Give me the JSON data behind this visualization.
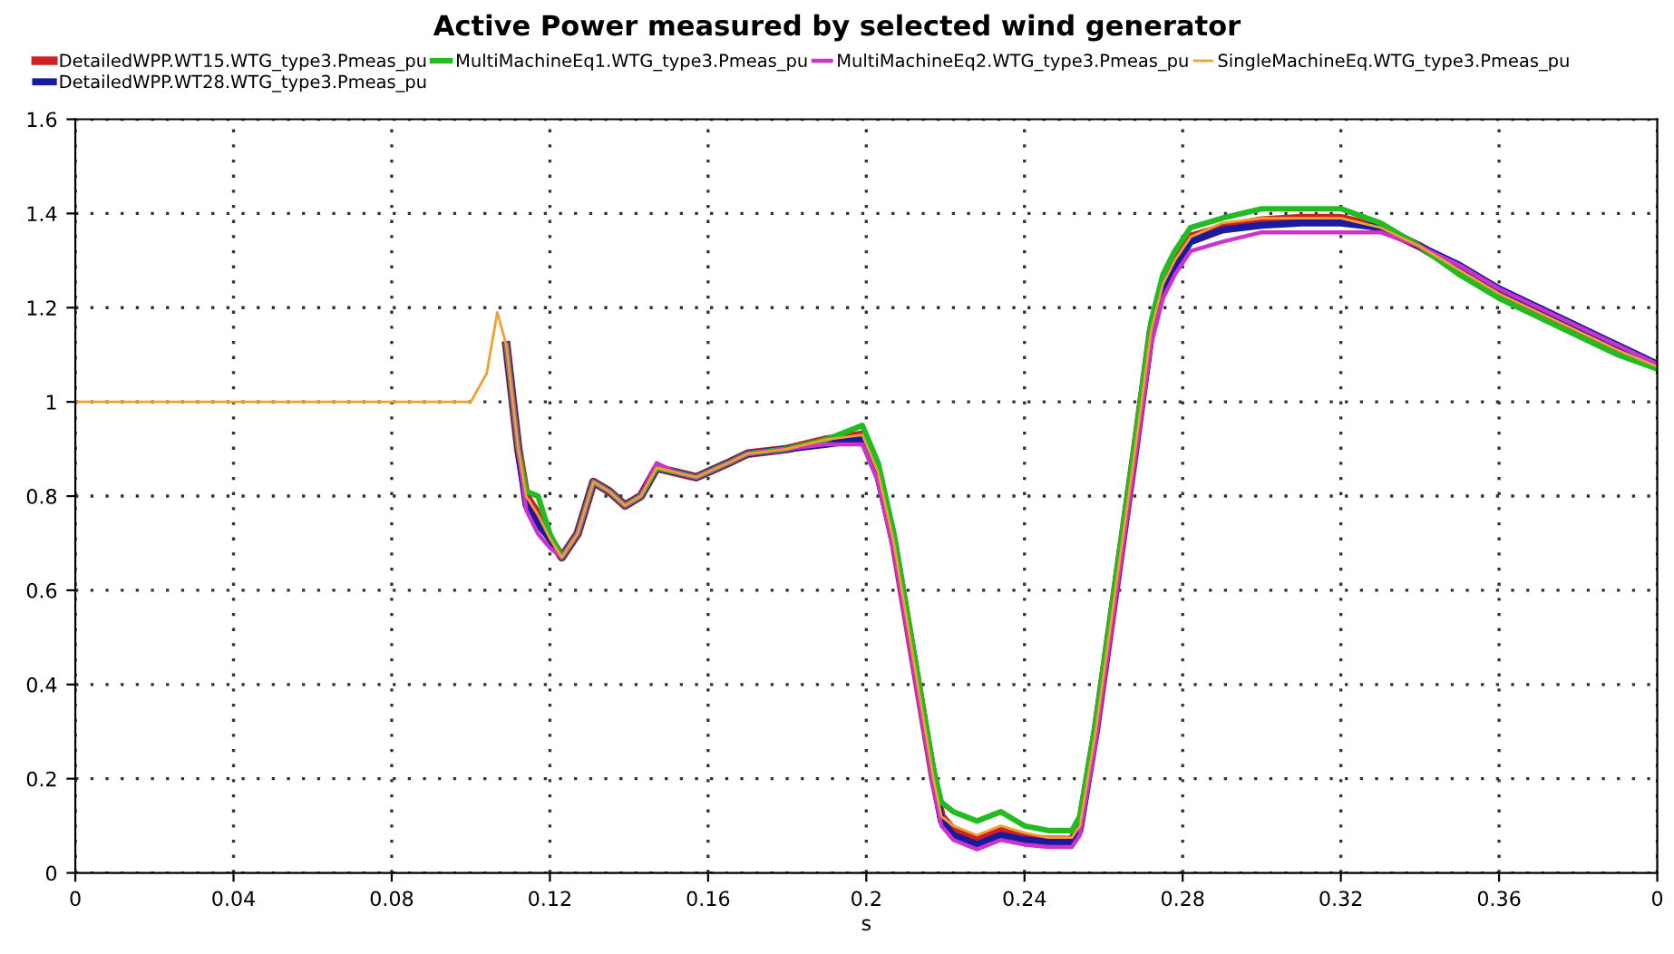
{
  "chart_data": {
    "type": "line",
    "title": "Active Power measured by selected wind generator",
    "xlabel": "s",
    "x": [
      0,
      0.1,
      0.104,
      0.1067,
      0.109,
      0.112,
      0.114,
      0.117,
      0.12,
      0.123,
      0.127,
      0.131,
      0.135,
      0.139,
      0.143,
      0.147,
      0.152,
      0.157,
      0.165,
      0.17,
      0.18,
      0.19,
      0.199,
      0.203,
      0.207,
      0.212,
      0.217,
      0.219,
      0.222,
      0.228,
      0.234,
      0.24,
      0.246,
      0.252,
      0.254,
      0.258,
      0.263,
      0.268,
      0.272,
      0.275,
      0.278,
      0.282,
      0.29,
      0.3,
      0.31,
      0.32,
      0.33,
      0.34,
      0.35,
      0.36,
      0.37,
      0.38,
      0.39,
      0.4
    ],
    "series": [
      {
        "name": "DetailedWPP.WT15.WTG_type3.Pmeas_pu",
        "color": "#cc2222",
        "values": [
          null,
          null,
          null,
          null,
          1.12,
          0.9,
          0.8,
          0.76,
          0.71,
          0.67,
          0.72,
          0.83,
          0.81,
          0.78,
          0.8,
          0.86,
          0.85,
          0.84,
          0.87,
          0.89,
          0.9,
          0.92,
          0.93,
          0.85,
          0.7,
          0.45,
          0.2,
          0.12,
          0.09,
          0.07,
          0.09,
          0.075,
          0.07,
          0.07,
          0.1,
          0.3,
          0.6,
          0.9,
          1.15,
          1.25,
          1.3,
          1.35,
          1.37,
          1.385,
          1.39,
          1.39,
          1.37,
          1.33,
          1.28,
          1.23,
          1.19,
          1.15,
          1.11,
          1.075
        ]
      },
      {
        "name": "DetailedWPP.WT28.WTG_type3.Pmeas_pu",
        "color": "#1a1aa0",
        "values": [
          null,
          null,
          null,
          null,
          1.12,
          0.9,
          0.78,
          0.74,
          0.71,
          0.67,
          0.72,
          0.83,
          0.81,
          0.78,
          0.8,
          0.86,
          0.85,
          0.84,
          0.87,
          0.89,
          0.9,
          0.91,
          0.92,
          0.84,
          0.7,
          0.45,
          0.2,
          0.11,
          0.08,
          0.06,
          0.08,
          0.07,
          0.065,
          0.065,
          0.09,
          0.3,
          0.6,
          0.9,
          1.14,
          1.24,
          1.29,
          1.34,
          1.365,
          1.375,
          1.38,
          1.38,
          1.37,
          1.33,
          1.29,
          1.24,
          1.2,
          1.16,
          1.12,
          1.08
        ]
      },
      {
        "name": "MultiMachineEq1.WTG_type3.Pmeas_pu",
        "color": "#22bb22",
        "values": [
          null,
          null,
          null,
          null,
          1.12,
          0.9,
          0.81,
          0.8,
          0.72,
          0.67,
          0.72,
          0.83,
          0.81,
          0.78,
          0.8,
          0.86,
          0.85,
          0.84,
          0.87,
          0.89,
          0.9,
          0.92,
          0.95,
          0.87,
          0.72,
          0.47,
          0.22,
          0.15,
          0.13,
          0.11,
          0.13,
          0.1,
          0.09,
          0.09,
          0.12,
          0.32,
          0.62,
          0.92,
          1.17,
          1.27,
          1.32,
          1.37,
          1.39,
          1.41,
          1.41,
          1.41,
          1.38,
          1.33,
          1.27,
          1.22,
          1.18,
          1.14,
          1.1,
          1.07
        ]
      },
      {
        "name": "MultiMachineEq2.WTG_type3.Pmeas_pu",
        "color": "#cc33cc",
        "values": [
          null,
          null,
          null,
          null,
          1.12,
          0.9,
          0.77,
          0.72,
          0.69,
          0.67,
          0.72,
          0.83,
          0.81,
          0.78,
          0.8,
          0.87,
          0.85,
          0.84,
          0.87,
          0.89,
          0.9,
          0.91,
          0.91,
          0.83,
          0.68,
          0.43,
          0.18,
          0.1,
          0.07,
          0.05,
          0.07,
          0.06,
          0.055,
          0.055,
          0.08,
          0.28,
          0.58,
          0.88,
          1.12,
          1.22,
          1.27,
          1.32,
          1.34,
          1.36,
          1.36,
          1.36,
          1.36,
          1.33,
          1.29,
          1.24,
          1.2,
          1.16,
          1.12,
          1.08
        ]
      },
      {
        "name": "SingleMachineEq.WTG_type3.Pmeas_pu",
        "color": "#f0a030",
        "values": [
          1,
          1,
          1.06,
          1.19,
          1.12,
          0.9,
          0.8,
          0.76,
          0.71,
          0.67,
          0.72,
          0.83,
          0.81,
          0.78,
          0.8,
          0.86,
          0.85,
          0.84,
          0.87,
          0.89,
          0.9,
          0.92,
          0.93,
          0.85,
          0.7,
          0.45,
          0.2,
          0.12,
          0.1,
          0.08,
          0.1,
          0.085,
          0.075,
          0.075,
          0.1,
          0.3,
          0.6,
          0.9,
          1.15,
          1.25,
          1.3,
          1.35,
          1.38,
          1.39,
          1.39,
          1.39,
          1.37,
          1.33,
          1.28,
          1.23,
          1.19,
          1.15,
          1.11,
          1.075
        ]
      }
    ],
    "xlim": [
      0,
      0.4
    ],
    "xticks": [
      0,
      0.04,
      0.08,
      0.12,
      0.16,
      0.2,
      0.24,
      0.28,
      0.32,
      0.36,
      {
        "value": 0.4,
        "label": "0"
      }
    ],
    "ylim": [
      0,
      1.6
    ],
    "yticks": [
      0,
      0.2,
      0.4,
      0.6,
      0.8,
      1,
      1.2,
      1.4,
      1.6
    ],
    "grid": true,
    "legend": "top",
    "line_style": "solid",
    "marker": "none"
  }
}
